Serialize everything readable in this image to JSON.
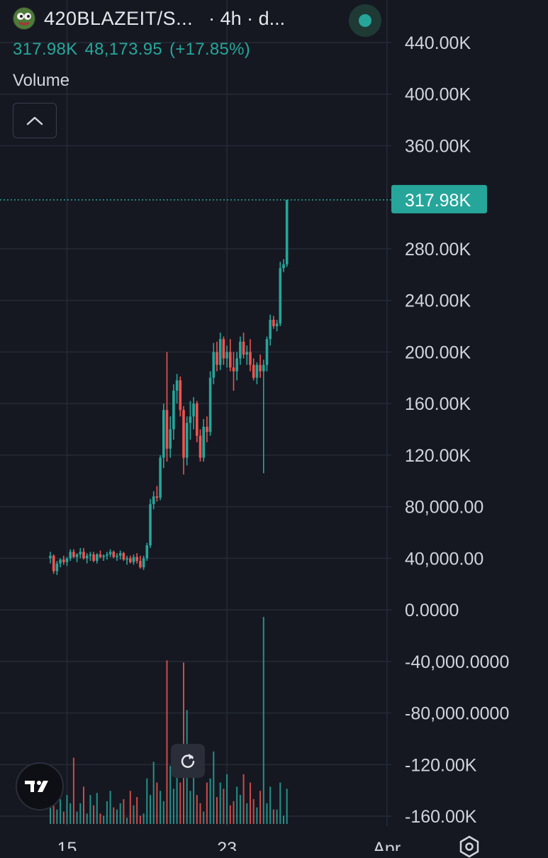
{
  "header": {
    "pair": "420BLAZEIT/S...",
    "meta": "· 4h · d..."
  },
  "price_line": {
    "last": "317.98K",
    "change_abs": "48,173.95",
    "change_pct": "(+17.85%)"
  },
  "volume_label": "Volume",
  "colors": {
    "background": "#151821",
    "up": "#26a69a",
    "down": "#ef5350",
    "grid": "#262a35",
    "axis_text": "#d1d4dc"
  },
  "icons": [
    "pepe-avatar-icon",
    "live-dot-icon",
    "chevron-up-icon",
    "reset-icon",
    "tradingview-logo-icon",
    "settings-icon"
  ],
  "chart_data": {
    "type": "candlestick",
    "timeframe": "4h",
    "ylim": [
      -160000,
      440000
    ],
    "y_ticks": [
      {
        "value": 440000,
        "label": "440.00K"
      },
      {
        "value": 400000,
        "label": "400.00K"
      },
      {
        "value": 360000,
        "label": "360.00K"
      },
      {
        "value": 280000,
        "label": "280.00K"
      },
      {
        "value": 240000,
        "label": "240.00K"
      },
      {
        "value": 200000,
        "label": "200.00K"
      },
      {
        "value": 160000,
        "label": "160.00K"
      },
      {
        "value": 120000,
        "label": "120.00K"
      },
      {
        "value": 80000,
        "label": "80,000.00"
      },
      {
        "value": 40000,
        "label": "40,000.00"
      },
      {
        "value": 0,
        "label": "0.0000"
      },
      {
        "value": -40000,
        "label": "-40,000.0000"
      },
      {
        "value": -80000,
        "label": "-80,000.0000"
      },
      {
        "value": -120000,
        "label": "-120.00K"
      },
      {
        "value": -160000,
        "label": "-160.00K"
      }
    ],
    "last_price": {
      "value": 317980,
      "label": "317.98K"
    },
    "x_ticks": [
      {
        "bar": 5,
        "label": "15"
      },
      {
        "bar": 53,
        "label": "23"
      },
      {
        "bar": 101,
        "label": "Apr"
      }
    ],
    "ohlc": [
      [
        40000,
        45000,
        36000,
        42000
      ],
      [
        42000,
        43000,
        28000,
        30000
      ],
      [
        30000,
        38000,
        27000,
        36000
      ],
      [
        36000,
        40000,
        33000,
        39000
      ],
      [
        39000,
        42000,
        35000,
        37000
      ],
      [
        37000,
        41000,
        34000,
        40000
      ],
      [
        40000,
        47000,
        38000,
        45000
      ],
      [
        45000,
        47000,
        40000,
        41000
      ],
      [
        41000,
        44000,
        37000,
        43000
      ],
      [
        43000,
        48000,
        40000,
        45000
      ],
      [
        45000,
        48000,
        39000,
        40000
      ],
      [
        40000,
        44000,
        36000,
        42000
      ],
      [
        42000,
        45000,
        38000,
        43000
      ],
      [
        43000,
        45000,
        37000,
        38000
      ],
      [
        38000,
        44000,
        36000,
        43000
      ],
      [
        43000,
        46000,
        40000,
        41000
      ],
      [
        41000,
        43000,
        38000,
        42000
      ],
      [
        42000,
        45000,
        39000,
        43000
      ],
      [
        43000,
        47000,
        41000,
        45000
      ],
      [
        45000,
        46000,
        40000,
        41000
      ],
      [
        41000,
        44000,
        38000,
        42000
      ],
      [
        42000,
        46000,
        39000,
        44000
      ],
      [
        44000,
        45000,
        38000,
        39000
      ],
      [
        39000,
        42000,
        35000,
        40000
      ],
      [
        40000,
        42000,
        36000,
        37000
      ],
      [
        37000,
        43000,
        35000,
        41000
      ],
      [
        41000,
        44000,
        36000,
        38000
      ],
      [
        38000,
        42000,
        32000,
        33000
      ],
      [
        33000,
        42000,
        31000,
        40000
      ],
      [
        40000,
        52000,
        38000,
        50000
      ],
      [
        50000,
        86000,
        48000,
        82000
      ],
      [
        82000,
        92000,
        78000,
        88000
      ],
      [
        88000,
        96000,
        84000,
        87000
      ],
      [
        87000,
        120000,
        85000,
        118000
      ],
      [
        118000,
        160000,
        110000,
        155000
      ],
      [
        155000,
        200000,
        115000,
        125000
      ],
      [
        125000,
        150000,
        118000,
        140000
      ],
      [
        140000,
        175000,
        132000,
        170000
      ],
      [
        170000,
        183000,
        160000,
        178000
      ],
      [
        178000,
        181000,
        150000,
        155000
      ],
      [
        155000,
        158000,
        105000,
        118000
      ],
      [
        118000,
        150000,
        112000,
        145000
      ],
      [
        145000,
        162000,
        132000,
        150000
      ],
      [
        150000,
        165000,
        140000,
        160000
      ],
      [
        160000,
        162000,
        130000,
        135000
      ],
      [
        135000,
        140000,
        115000,
        118000
      ],
      [
        118000,
        148000,
        115000,
        142000
      ],
      [
        142000,
        150000,
        130000,
        138000
      ],
      [
        138000,
        185000,
        135000,
        180000
      ],
      [
        180000,
        207000,
        175000,
        200000
      ],
      [
        200000,
        208000,
        185000,
        190000
      ],
      [
        190000,
        215000,
        186000,
        210000
      ],
      [
        210000,
        212000,
        190000,
        195000
      ],
      [
        195000,
        205000,
        188000,
        200000
      ],
      [
        200000,
        210000,
        185000,
        188000
      ],
      [
        188000,
        200000,
        170000,
        185000
      ],
      [
        185000,
        200000,
        178000,
        195000
      ],
      [
        195000,
        212000,
        190000,
        208000
      ],
      [
        208000,
        215000,
        195000,
        198000
      ],
      [
        198000,
        205000,
        190000,
        200000
      ],
      [
        200000,
        210000,
        185000,
        190000
      ],
      [
        190000,
        195000,
        178000,
        180000
      ],
      [
        180000,
        192000,
        175000,
        190000
      ],
      [
        190000,
        198000,
        180000,
        185000
      ],
      [
        185000,
        194000,
        106000,
        190000
      ],
      [
        190000,
        212000,
        185000,
        210000
      ],
      [
        210000,
        229000,
        205000,
        225000
      ],
      [
        225000,
        228000,
        218000,
        220000
      ],
      [
        220000,
        225000,
        216000,
        222000
      ],
      [
        222000,
        270000,
        220000,
        265000
      ],
      [
        265000,
        272000,
        262000,
        268000
      ],
      [
        268000,
        318000,
        266000,
        317980
      ]
    ],
    "volume": [
      12,
      25,
      7,
      12,
      6,
      14,
      10,
      32,
      6,
      10,
      18,
      5,
      14,
      9,
      15,
      5,
      4,
      11,
      16,
      8,
      7,
      10,
      12,
      3,
      16,
      9,
      13,
      4,
      5,
      22,
      14,
      30,
      20,
      16,
      11,
      79,
      28,
      17,
      33,
      20,
      78,
      55,
      16,
      28,
      14,
      10,
      6,
      20,
      22,
      35,
      13,
      20,
      17,
      24,
      9,
      11,
      18,
      14,
      24,
      10,
      20,
      12,
      8,
      16,
      100,
      10,
      18,
      7,
      7,
      20,
      4,
      17
    ]
  }
}
